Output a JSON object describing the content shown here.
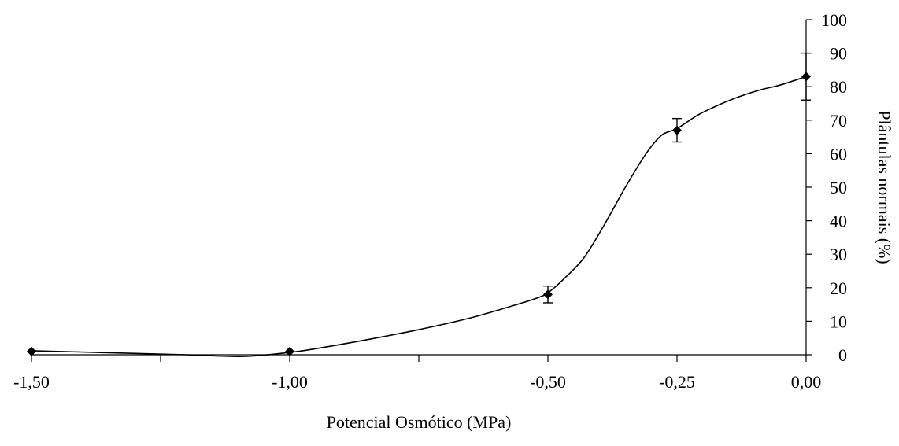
{
  "chart_data": {
    "type": "line",
    "title": "",
    "xlabel": "Potencial Osmótico (MPa)",
    "ylabel": "Plântulas normais (%)",
    "xlim": [
      -1.5,
      0.0
    ],
    "ylim": [
      0,
      100
    ],
    "x_ticks": [
      -1.5,
      -1.25,
      -1.0,
      -0.75,
      -0.5,
      -0.25,
      0.0
    ],
    "x_tick_labels": [
      "-1,50",
      "-1,00",
      "-0,50",
      "-0,25",
      "0,00"
    ],
    "x_tick_label_values": [
      -1.5,
      -1.0,
      -0.5,
      -0.25,
      0.0
    ],
    "y_ticks": [
      0,
      10,
      20,
      30,
      40,
      50,
      60,
      70,
      80,
      90,
      100
    ],
    "y_tick_labels": [
      "0",
      "10",
      "20",
      "30",
      "40",
      "50",
      "60",
      "70",
      "80",
      "90",
      "100"
    ],
    "y_axis_position": "right",
    "grid": false,
    "legend": "none",
    "line_color": "#000000",
    "series": [
      {
        "marker": "diamond",
        "x": [
          -1.5,
          -1.0,
          -0.5,
          -0.25,
          0.0
        ],
        "y": [
          1,
          1,
          18,
          67,
          83
        ],
        "error": [
          0,
          0,
          2.5,
          3.5,
          7
        ]
      }
    ],
    "fitted_curve": {
      "x": [
        -1.5,
        -1.35,
        -1.2,
        -1.09,
        -1.0,
        -0.95,
        -0.85,
        -0.75,
        -0.65,
        -0.56,
        -0.52,
        -0.5,
        -0.47,
        -0.43,
        -0.39,
        -0.35,
        -0.31,
        -0.28,
        -0.25,
        -0.21,
        -0.17,
        -0.13,
        -0.09,
        -0.05,
        0.0
      ],
      "y": [
        1.2,
        0.6,
        0.0,
        -0.5,
        0.7,
        1.8,
        4.5,
        7.5,
        11,
        15,
        17,
        18.5,
        22.5,
        29,
        39,
        50,
        60,
        65.5,
        67.5,
        71.5,
        74.5,
        77,
        79,
        80.5,
        83
      ]
    }
  }
}
